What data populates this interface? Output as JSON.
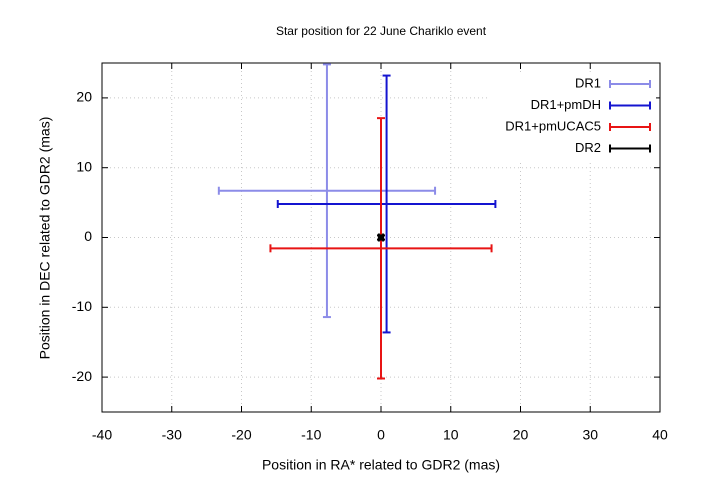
{
  "chart_data": {
    "type": "scatter",
    "title": "Star position for 22 June Chariklo event",
    "xlabel": "Position in RA* related to GDR2 (mas)",
    "ylabel": "Position in DEC related to GDR2 (mas)",
    "xlim": [
      -40,
      40
    ],
    "ylim": [
      -25,
      25
    ],
    "xticks": [
      -40,
      -30,
      -20,
      -10,
      0,
      10,
      20,
      30,
      40
    ],
    "yticks": [
      -20,
      -10,
      0,
      10,
      20
    ],
    "grid": true,
    "legend": "top-right",
    "series": [
      {
        "name": "DR1",
        "color": "#8c8ce8",
        "x": [
          -7.75
        ],
        "y": [
          6.7
        ],
        "xerr": [
          15.5
        ],
        "yerr": [
          18.1
        ]
      },
      {
        "name": "DR1+pmDH",
        "color": "#1414d0",
        "x": [
          0.8
        ],
        "y": [
          4.8
        ],
        "xerr": [
          15.6
        ],
        "yerr": [
          18.4
        ]
      },
      {
        "name": "DR1+pmUCAC5",
        "color": "#e81414",
        "x": [
          0
        ],
        "y": [
          -1.55
        ],
        "xerr": [
          15.85
        ],
        "yerr": [
          18.65
        ]
      },
      {
        "name": "DR2",
        "color": "#000000",
        "x": [
          0
        ],
        "y": [
          0
        ],
        "xerr": [
          0.3
        ],
        "yerr": [
          0.3
        ]
      }
    ]
  }
}
